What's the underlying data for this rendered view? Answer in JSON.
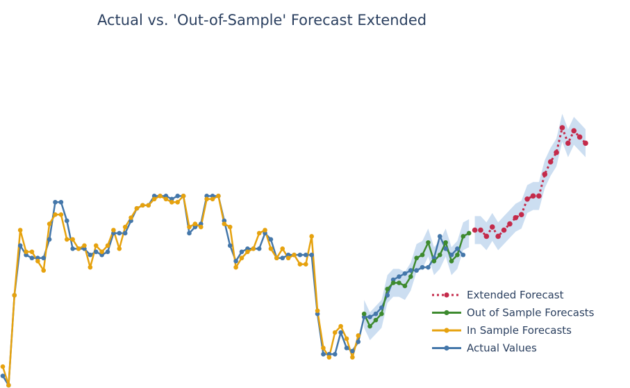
{
  "chart_data": {
    "type": "line",
    "title": "Actual vs. 'Out-of-Sample' Forecast Extended",
    "xlabel": "",
    "ylabel": "",
    "xlim": [
      0,
      100
    ],
    "ylim": [
      0,
      100
    ],
    "grid": false,
    "legend_position": "bottom-right",
    "series": [
      {
        "name": "Actual Values",
        "color": "#4477aa",
        "x": [
          0,
          1,
          2,
          3,
          4,
          5,
          6,
          7,
          8,
          9,
          10,
          11,
          12,
          13,
          14,
          15,
          16,
          17,
          18,
          19,
          20,
          21,
          22,
          23,
          24,
          25,
          26,
          27,
          28,
          29,
          30,
          31,
          32,
          33,
          34,
          35,
          36,
          37,
          38,
          39,
          40,
          41,
          42,
          43,
          44,
          45,
          46,
          47,
          48,
          49,
          50,
          51,
          52,
          53,
          54,
          55,
          56,
          57,
          58,
          59,
          60,
          61,
          62,
          63,
          64,
          65,
          66,
          67,
          68,
          69,
          70,
          71,
          72,
          73,
          74,
          75,
          76,
          77,
          78,
          79
        ],
        "values": [
          3,
          0,
          29,
          45,
          42,
          41,
          41,
          41,
          47,
          59,
          59,
          53,
          44,
          44,
          44,
          42,
          43,
          42,
          43,
          49,
          49,
          49,
          53,
          57,
          58,
          58,
          61,
          61,
          61,
          60,
          61,
          61,
          49,
          51,
          52,
          61,
          61,
          61,
          53,
          45,
          40,
          43,
          44,
          44,
          44,
          49,
          47,
          41,
          41,
          42,
          42,
          42,
          42,
          42,
          23,
          10,
          10,
          10,
          17,
          12,
          11,
          14,
          22,
          22,
          23,
          25,
          29,
          34,
          35,
          36,
          37,
          37,
          38,
          38,
          41,
          48,
          44,
          42,
          44,
          42
        ]
      },
      {
        "name": "In Sample Forecasts",
        "color": "#e6a20e",
        "x": [
          0,
          1,
          2,
          3,
          4,
          5,
          6,
          7,
          8,
          9,
          10,
          11,
          12,
          13,
          14,
          15,
          16,
          17,
          18,
          19,
          20,
          21,
          22,
          23,
          24,
          25,
          26,
          27,
          28,
          29,
          30,
          31,
          32,
          33,
          34,
          35,
          36,
          37,
          38,
          39,
          40,
          41,
          42,
          43,
          44,
          45,
          46,
          47,
          48,
          49,
          50,
          51,
          52,
          53,
          54,
          55,
          56,
          57,
          58,
          59,
          60,
          61
        ],
        "values": [
          6,
          0,
          29,
          50,
          43,
          43,
          40,
          37,
          52,
          55,
          55,
          47,
          47,
          44,
          45,
          38,
          45,
          43,
          45,
          50,
          44,
          51,
          54,
          57,
          58,
          58,
          60,
          61,
          60,
          59,
          59,
          61,
          51,
          52,
          51,
          60,
          60,
          61,
          52,
          51,
          38,
          41,
          43,
          44,
          49,
          50,
          44,
          41,
          44,
          41,
          42,
          39,
          39,
          48,
          24,
          12,
          9,
          17,
          19,
          15,
          9,
          16
        ]
      },
      {
        "name": "Out of Sample Forecasts",
        "color": "#3d8a2e",
        "x": [
          62,
          63,
          64,
          65,
          66,
          67,
          68,
          69,
          70,
          71,
          72,
          73,
          74,
          75,
          76,
          77,
          78,
          79,
          80
        ],
        "values": [
          23,
          19,
          21,
          23,
          31,
          33,
          33,
          32,
          35,
          41,
          42,
          46,
          40,
          42,
          46,
          40,
          42,
          48,
          49
        ]
      },
      {
        "name": "Extended Forecast",
        "color": "#c42a4a",
        "x": [
          81,
          82,
          83,
          84,
          85,
          86,
          87,
          88,
          89,
          90,
          91,
          92,
          93,
          94,
          95,
          96,
          97,
          98,
          99,
          100
        ],
        "values": [
          50,
          50,
          48,
          51,
          48,
          50,
          52,
          54,
          55,
          60,
          61,
          61,
          68,
          72,
          75,
          83,
          78,
          82,
          80,
          78
        ]
      }
    ],
    "confidence_band_fill": "#aac8e8"
  },
  "legend": [
    {
      "label": "Extended Forecast",
      "color": "#c42a4a",
      "dashed": true
    },
    {
      "label": "Out of Sample Forecasts",
      "color": "#3d8a2e",
      "dashed": false
    },
    {
      "label": "In Sample Forecasts",
      "color": "#e6a20e",
      "dashed": false
    },
    {
      "label": "Actual Values",
      "color": "#4477aa",
      "dashed": false
    }
  ]
}
